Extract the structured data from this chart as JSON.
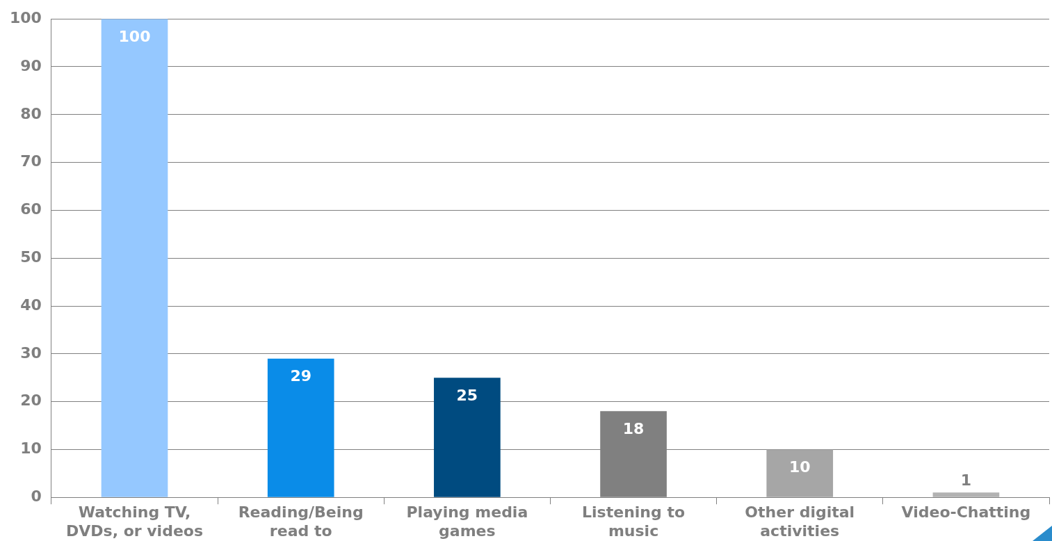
{
  "chart_data": {
    "type": "bar",
    "categories": [
      "Watching TV, DVDs, or videos",
      "Reading/Being read to",
      "Playing media games",
      "Listening to music",
      "Other digital activities",
      "Video-Chatting"
    ],
    "values": [
      100,
      29,
      25,
      18,
      10,
      1
    ],
    "colors": [
      "#95c8ff",
      "#0a8ce8",
      "#004b80",
      "#808080",
      "#a6a6a6",
      "#b2b2b2"
    ],
    "ylim": [
      0,
      100
    ],
    "yticks": [
      0,
      10,
      20,
      30,
      40,
      50,
      60,
      70,
      80,
      90,
      100
    ],
    "grid": "y",
    "data_labels": true,
    "legend": false
  }
}
